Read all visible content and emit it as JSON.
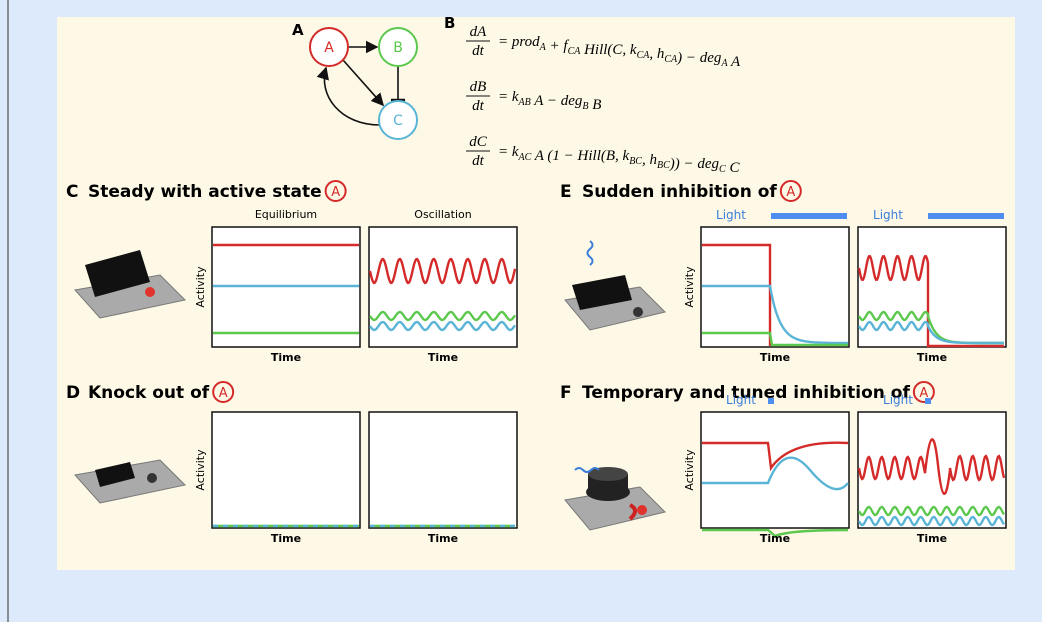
{
  "network": {
    "label": "A",
    "nodes": [
      "A",
      "B",
      "C"
    ]
  },
  "equations": {
    "label": "B",
    "items": [
      {
        "numerator": "dA",
        "denominator": "dt",
        "rhs": [
          {
            "text": "= prod",
            "sub": "A"
          },
          {
            "text": " + f",
            "sub": "CA"
          },
          {
            "text": " Hill(C, k",
            "sub": "CA"
          },
          {
            "text": ", h",
            "sub": "CA"
          },
          {
            "text": ") − deg",
            "sub": "A"
          },
          {
            "text": " A"
          }
        ]
      },
      {
        "numerator": "dB",
        "denominator": "dt",
        "rhs": [
          {
            "text": "= k",
            "sub": "AB"
          },
          {
            "text": " A − deg",
            "sub": "B"
          },
          {
            "text": " B"
          }
        ]
      },
      {
        "numerator": "dC",
        "denominator": "dt",
        "rhs": [
          {
            "text": "= k",
            "sub": "AC"
          },
          {
            "text": " A (1 − Hill(B, k",
            "sub": "BC"
          },
          {
            "text": ", h",
            "sub": "BC"
          },
          {
            "text": ")) − deg",
            "sub": "C"
          },
          {
            "text": " C"
          }
        ]
      }
    ]
  },
  "panels": [
    {
      "label": "C",
      "title": "Steady with active state",
      "marker": "A",
      "plot_titles": [
        "Equilibrium",
        "Oscillation"
      ],
      "y_label": "Activity",
      "x_labels": [
        "Time",
        "Time"
      ]
    },
    {
      "label": "D",
      "title": "Knock out of",
      "marker": "A",
      "y_label": "Activity",
      "x_labels": [
        "Time",
        "Time"
      ]
    },
    {
      "label": "E",
      "title": "Sudden inhibition of",
      "marker": "A",
      "light_labels": [
        "Light",
        "Light"
      ],
      "y_label": "Activity",
      "x_labels": [
        "Time",
        "Time"
      ]
    },
    {
      "label": "F",
      "title": "Temporary and tuned inhibition of",
      "marker": "A",
      "light_labels": [
        "Light",
        "Light"
      ],
      "y_label": "Activity",
      "x_labels": [
        "Time",
        "Time"
      ]
    }
  ]
}
